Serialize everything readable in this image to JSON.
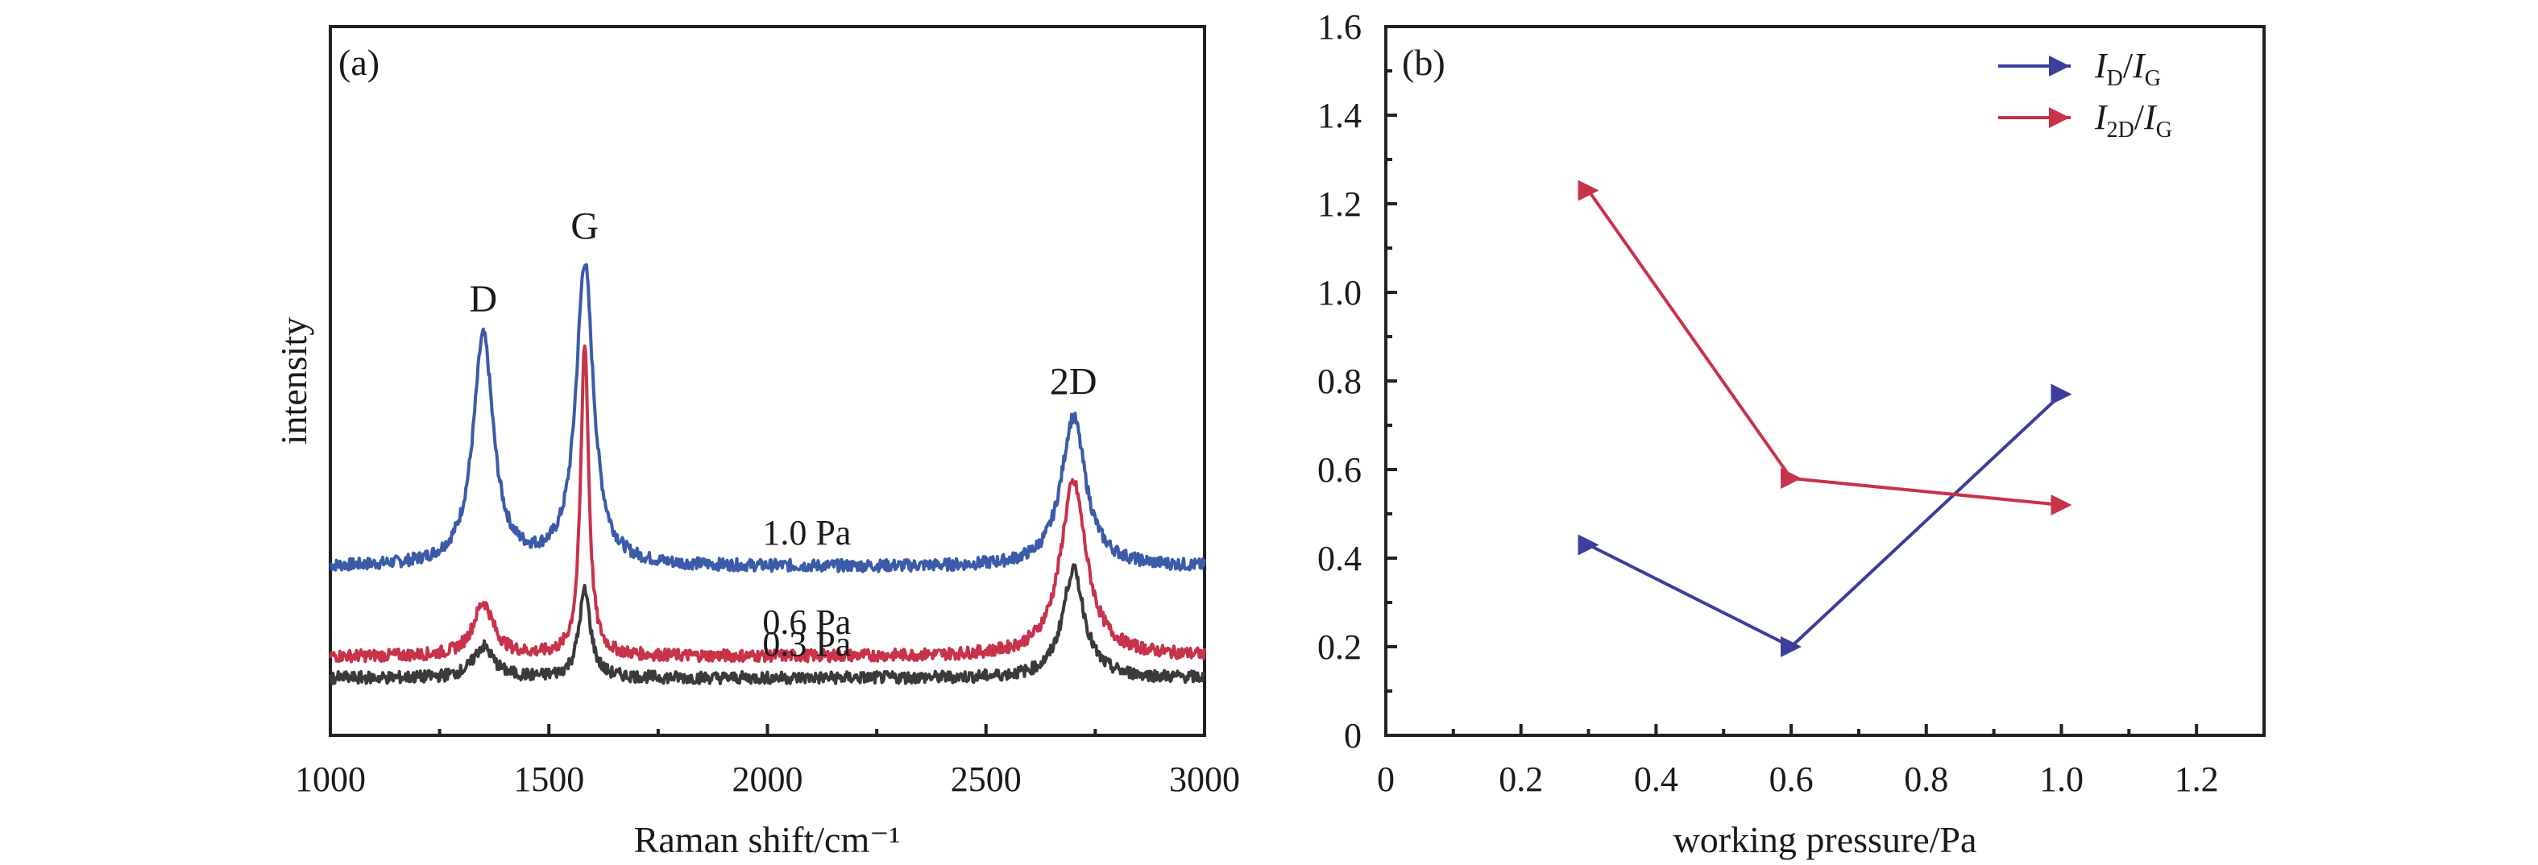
{
  "chart_data": [
    {
      "panel": "(a)",
      "type": "line",
      "xlabel": "Raman shift/cm⁻¹",
      "ylabel": "intensity",
      "xlim": [
        1000,
        3000
      ],
      "x_ticks": [
        "1000",
        "1500",
        "2000",
        "2500",
        "3000"
      ],
      "y_ticks": [],
      "grid": false,
      "peak_labels": [
        {
          "text": "D",
          "x": 1350
        },
        {
          "text": "G",
          "x": 1582
        },
        {
          "text": "2D",
          "x": 2700
        }
      ],
      "series": [
        {
          "name": "1.0 Pa",
          "color": "#3b5ba9",
          "baseline": 0.37,
          "peaks": [
            {
              "x": 1350,
              "height": 0.95,
              "width": 28
            },
            {
              "x": 1582,
              "height": 1.25,
              "width": 24
            },
            {
              "x": 2700,
              "height": 0.62,
              "width": 34
            }
          ]
        },
        {
          "name": "0.6 Pa",
          "color": "#c8324a",
          "baseline": 0.0,
          "peaks": [
            {
              "x": 1350,
              "height": 0.22,
              "width": 28
            },
            {
              "x": 1582,
              "height": 1.3,
              "width": 11
            },
            {
              "x": 2700,
              "height": 0.72,
              "width": 36
            }
          ]
        },
        {
          "name": "0.3 Pa",
          "color": "#3a3a3a",
          "baseline": -0.09,
          "peaks": [
            {
              "x": 1350,
              "height": 0.13,
              "width": 28
            },
            {
              "x": 1582,
              "height": 0.36,
              "width": 16
            },
            {
              "x": 2700,
              "height": 0.45,
              "width": 30
            }
          ]
        }
      ]
    },
    {
      "panel": "(b)",
      "type": "line",
      "xlabel": "working pressure/Pa",
      "ylabel": "",
      "xlim": [
        0,
        1.3
      ],
      "ylim": [
        0,
        1.6
      ],
      "x_ticks": [
        "0",
        "0.2",
        "0.4",
        "0.6",
        "0.8",
        "1.0",
        "1.2"
      ],
      "y_ticks": [
        "0",
        "0.2",
        "0.4",
        "0.6",
        "0.8",
        "1.0",
        "1.2",
        "1.4",
        "1.6"
      ],
      "grid": false,
      "legend_position": "top-right",
      "series": [
        {
          "name": "ID/IG",
          "name_parts": {
            "main": "I",
            "sub": "D",
            "sep": "/",
            "main2": "I",
            "sub2": "G"
          },
          "color": "#3d3d9c",
          "x": [
            0.3,
            0.6,
            1.0
          ],
          "y": [
            0.43,
            0.2,
            0.77
          ]
        },
        {
          "name": "I2D/IG",
          "name_parts": {
            "main": "I",
            "sub": "2D",
            "sep": "/",
            "main2": "I",
            "sub2": "G"
          },
          "color": "#c8324a",
          "x": [
            0.3,
            0.6,
            1.0
          ],
          "y": [
            1.23,
            0.58,
            0.52
          ]
        }
      ]
    }
  ]
}
